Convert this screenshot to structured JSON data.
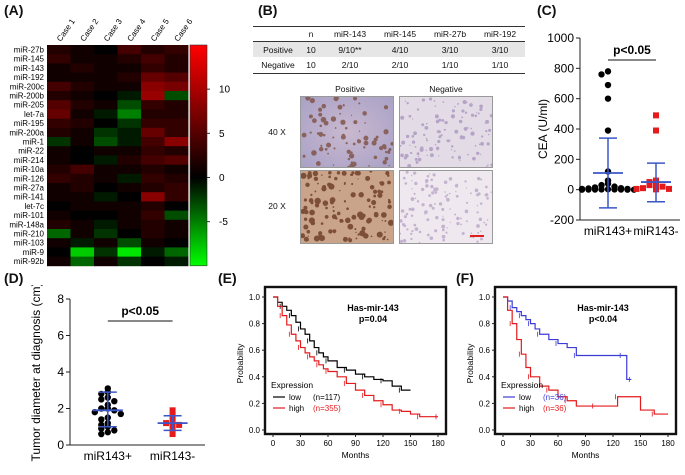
{
  "panels": {
    "A": "(A)",
    "B": "(B)",
    "C": "(C)",
    "D": "(D)",
    "E": "(E)",
    "F": "(F)"
  },
  "chart_data": [
    {
      "panel": "A",
      "type": "heatmap",
      "columns": [
        "Case 1",
        "Case 2",
        "Case 3",
        "Case 4",
        "Case 5",
        "Case 6"
      ],
      "rows": [
        "miR-27b",
        "miR-145",
        "miR-143",
        "miR-192",
        "miR-200c",
        "miR-200b",
        "miR-205",
        "let-7a",
        "miR-195",
        "miR-200a",
        "miR-1",
        "miR-22",
        "miR-214",
        "miR-10a",
        "miR-126",
        "miR-27a",
        "miR-141",
        "let-7c",
        "miR-101",
        "miR-148a",
        "miR-210",
        "miR-103",
        "miR-9",
        "miR-92b"
      ],
      "values": [
        [
          2,
          1,
          0,
          4,
          2,
          3
        ],
        [
          3,
          1,
          1,
          2,
          4,
          2
        ],
        [
          1,
          2,
          1,
          1,
          3,
          2
        ],
        [
          1,
          1,
          1,
          2,
          6,
          5
        ],
        [
          4,
          2,
          1,
          1,
          8,
          7
        ],
        [
          2,
          1,
          0,
          -1,
          9,
          -3
        ],
        [
          5,
          2,
          1,
          -3,
          3,
          2
        ],
        [
          6,
          1,
          -1,
          -5,
          2,
          2
        ],
        [
          3,
          2,
          0,
          -2,
          3,
          3
        ],
        [
          2,
          1,
          -2,
          -1,
          6,
          3
        ],
        [
          -2,
          1,
          -3,
          -1,
          4,
          8
        ],
        [
          1,
          0,
          1,
          1,
          3,
          2
        ],
        [
          1,
          0,
          -1,
          2,
          4,
          5
        ],
        [
          2,
          4,
          1,
          1,
          2,
          1
        ],
        [
          3,
          2,
          1,
          -1,
          3,
          2
        ],
        [
          1,
          2,
          0,
          1,
          2,
          3
        ],
        [
          1,
          1,
          -1,
          0,
          8,
          3
        ],
        [
          0,
          1,
          1,
          1,
          2,
          0
        ],
        [
          1,
          0,
          0,
          1,
          3,
          -3
        ],
        [
          2,
          1,
          -1,
          1,
          2,
          1
        ],
        [
          -4,
          1,
          -2,
          0,
          2,
          1
        ],
        [
          1,
          -1,
          1,
          -3,
          1,
          0
        ],
        [
          0,
          -8,
          -2,
          -9,
          -1,
          -4
        ],
        [
          1,
          -4,
          1,
          -2,
          0,
          -1
        ]
      ],
      "color_scale": {
        "low": "#00ff00",
        "mid": "#000000",
        "high": "#ff0000",
        "min": -10,
        "max": 15
      },
      "colorbar_ticks": [
        10,
        5,
        0,
        -5
      ]
    },
    {
      "panel": "B",
      "type": "table",
      "header": [
        "",
        "n",
        "miR-143",
        "miR-145",
        "miR-27b",
        "miR-192"
      ],
      "rows": [
        [
          "Positive",
          "10",
          "9/10**",
          "4/10",
          "3/10",
          "3/10"
        ],
        [
          "Negative",
          "10",
          "2/10",
          "2/10",
          "1/10",
          "1/10"
        ]
      ],
      "image_col_labels": [
        "Positive",
        "Negative"
      ],
      "image_row_labels": [
        "40 X",
        "20 X"
      ]
    },
    {
      "panel": "C",
      "type": "scatter",
      "ylabel": "CEA (U/ml)",
      "ylim": [
        -200,
        1000
      ],
      "yticks": [
        -200,
        0,
        200,
        400,
        600,
        800,
        1000
      ],
      "categories": [
        "miR143+",
        "miR143-"
      ],
      "annotation": "p<0.05",
      "series": [
        {
          "name": "miR143+",
          "color": "#000000",
          "marker": "circle",
          "values": [
            780,
            760,
            690,
            600,
            390,
            120,
            60,
            40,
            30,
            20,
            15,
            10,
            8,
            5,
            5,
            3,
            2,
            2,
            1,
            1,
            1,
            0,
            0,
            0
          ],
          "mean": 110,
          "sd_low": -120,
          "sd_high": 340
        },
        {
          "name": "miR143-",
          "color": "#e41a1c",
          "marker": "square",
          "values": [
            490,
            390,
            60,
            50,
            40,
            30,
            20,
            10,
            5,
            5,
            2
          ],
          "mean": 50,
          "sd_low": -80,
          "sd_high": 175
        }
      ]
    },
    {
      "panel": "D",
      "type": "scatter",
      "ylabel": "Tumor diameter at diagnosis (cm)",
      "ylim": [
        0,
        8
      ],
      "yticks": [
        0,
        2,
        4,
        6,
        8
      ],
      "categories": [
        "miR143+",
        "miR143-"
      ],
      "annotation": "p<0.05",
      "series": [
        {
          "name": "miR143+",
          "color": "#000000",
          "marker": "circle",
          "values": [
            3.1,
            2.9,
            2.8,
            2.6,
            2.5,
            2.4,
            2.2,
            2.0,
            2.0,
            1.9,
            1.8,
            1.7,
            1.5,
            1.4,
            1.2,
            1.1,
            1.0,
            0.9,
            0.8,
            0.7,
            0.6
          ],
          "mean": 1.9,
          "sd_low": 1.0,
          "sd_high": 2.9
        },
        {
          "name": "miR143-",
          "color": "#e41a1c",
          "marker": "square",
          "values": [
            1.9,
            1.6,
            1.3,
            1.2,
            1.1,
            1.0,
            0.6
          ],
          "mean": 1.2,
          "sd_low": 0.8,
          "sd_high": 1.6
        }
      ]
    },
    {
      "panel": "E",
      "type": "line",
      "title": "Has-mir-143",
      "subtitle": "p=0.04",
      "xlabel": "Months",
      "ylabel": "Probability",
      "xlim": [
        0,
        180
      ],
      "ylim": [
        0,
        1.0
      ],
      "xticks": [
        0,
        30,
        60,
        90,
        120,
        150,
        180
      ],
      "yticks": [
        0.0,
        0.2,
        0.4,
        0.6,
        0.8,
        1.0
      ],
      "legend_title": "Expression",
      "series": [
        {
          "name": "low",
          "n_label": "(n=117)",
          "color": "#000000",
          "x": [
            0,
            5,
            10,
            15,
            20,
            25,
            30,
            35,
            40,
            45,
            50,
            55,
            60,
            70,
            80,
            90,
            100,
            110,
            120,
            130,
            140,
            150
          ],
          "y": [
            1.0,
            0.96,
            0.93,
            0.9,
            0.86,
            0.81,
            0.76,
            0.72,
            0.67,
            0.62,
            0.58,
            0.55,
            0.52,
            0.47,
            0.45,
            0.42,
            0.4,
            0.38,
            0.37,
            0.33,
            0.3,
            0.3
          ]
        },
        {
          "name": "high",
          "n_label": "(n=355)",
          "color": "#e41a1c",
          "x": [
            0,
            5,
            10,
            15,
            20,
            25,
            30,
            35,
            40,
            45,
            50,
            55,
            60,
            70,
            80,
            90,
            100,
            110,
            120,
            130,
            140,
            150,
            160,
            170,
            180
          ],
          "y": [
            1.0,
            0.93,
            0.86,
            0.79,
            0.72,
            0.67,
            0.62,
            0.58,
            0.55,
            0.52,
            0.49,
            0.46,
            0.44,
            0.4,
            0.35,
            0.3,
            0.26,
            0.22,
            0.19,
            0.15,
            0.14,
            0.12,
            0.1,
            0.1,
            0.1
          ]
        }
      ]
    },
    {
      "panel": "F",
      "type": "line",
      "title": "Has-mir-143",
      "subtitle": "p<0.04",
      "xlabel": "Months",
      "ylabel": "Probability",
      "xlim": [
        0,
        180
      ],
      "ylim": [
        0,
        1.0
      ],
      "xticks": [
        0,
        30,
        60,
        90,
        120,
        150,
        180
      ],
      "yticks": [
        0.0,
        0.2,
        0.4,
        0.6,
        0.8,
        1.0
      ],
      "legend_title": "Expression",
      "series": [
        {
          "name": "low",
          "n_label": "(n=36)",
          "color": "#3b3bd6",
          "x": [
            0,
            5,
            10,
            15,
            20,
            25,
            30,
            35,
            40,
            50,
            60,
            70,
            80,
            100,
            130,
            135,
            140
          ],
          "y": [
            1.0,
            0.97,
            0.92,
            0.89,
            0.86,
            0.83,
            0.8,
            0.76,
            0.72,
            0.68,
            0.65,
            0.62,
            0.56,
            0.56,
            0.56,
            0.38,
            0.38
          ]
        },
        {
          "name": "high",
          "n_label": "(n=36)",
          "color": "#e41a1c",
          "x": [
            0,
            5,
            10,
            15,
            20,
            25,
            30,
            40,
            50,
            60,
            70,
            80,
            100,
            120,
            125,
            150,
            165,
            180
          ],
          "y": [
            1.0,
            0.9,
            0.8,
            0.68,
            0.57,
            0.47,
            0.4,
            0.33,
            0.3,
            0.25,
            0.22,
            0.18,
            0.18,
            0.18,
            0.25,
            0.15,
            0.12,
            0.12
          ]
        }
      ]
    }
  ]
}
